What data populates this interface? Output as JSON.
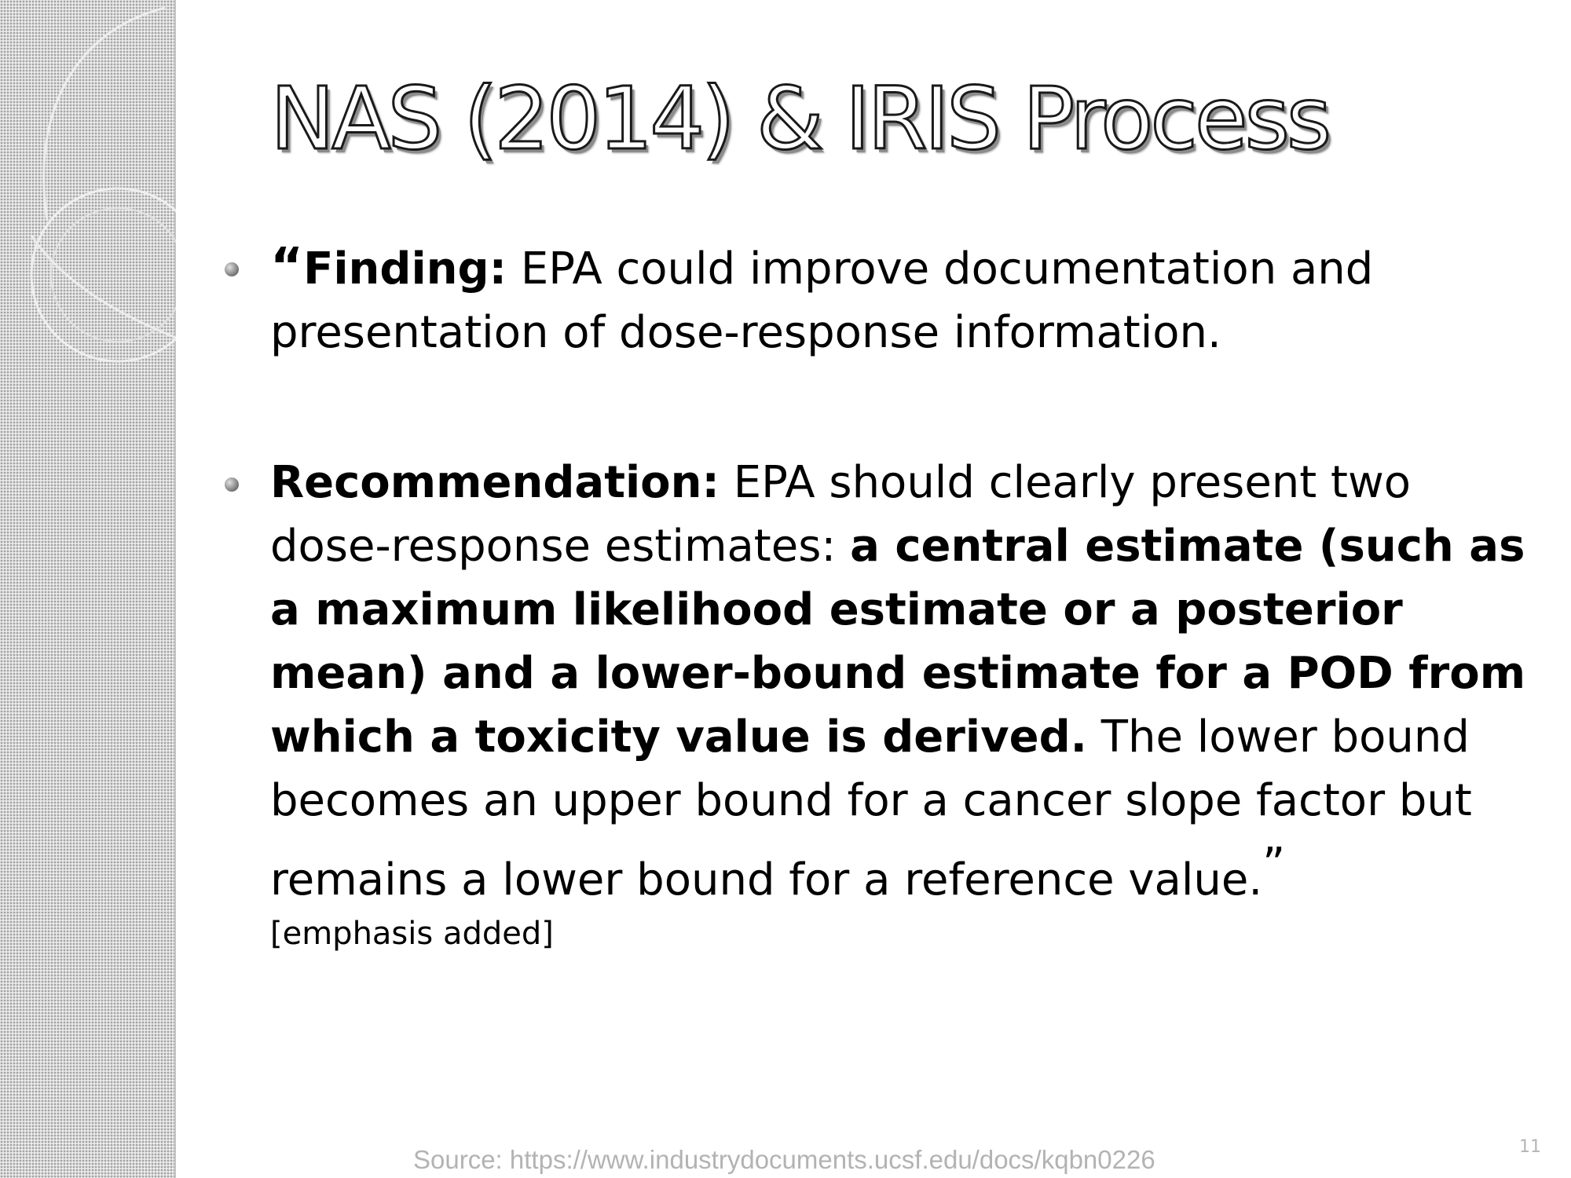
{
  "slide": {
    "title": "NAS (2014) & IRIS Process",
    "bullets": [
      {
        "open_quote": "“",
        "label": "Finding:",
        "text": " EPA could improve documentation and presentation of dose-response information."
      },
      {
        "label": "Recommendation:",
        "text_a": " EPA should clearly present two dose-response estimates: ",
        "bold_text": "a central estimate (such as a maximum likelihood estimate or a posterior mean) and a lower-bound estimate for a POD from which a toxicity value is derived.",
        "text_b": " The lower bound becomes an upper bound for a cancer slope factor but remains a lower bound for a reference value.",
        "close_quote": "”"
      }
    ],
    "note": "[emphasis added]",
    "page_mark": "11"
  },
  "footer": {
    "source": "Source: https://www.industrydocuments.ucsf.edu/docs/kqbn0226"
  }
}
